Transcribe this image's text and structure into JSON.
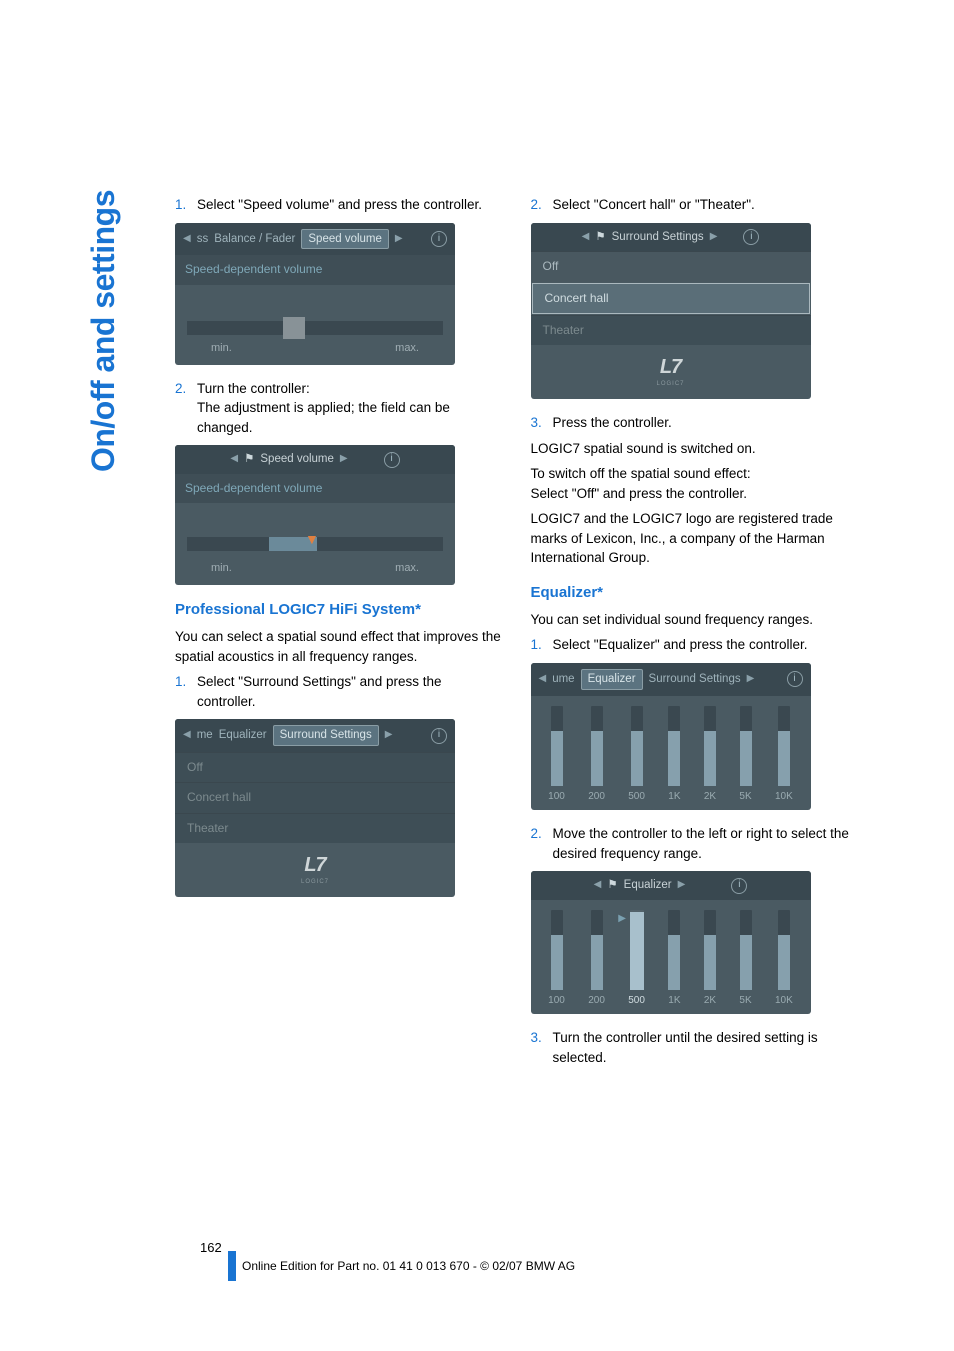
{
  "sideTab": "On/off and settings",
  "left": {
    "step1": {
      "num": "1.",
      "text": "Select \"Speed volume\" and press the controller."
    },
    "ss1": {
      "nav_prev": "ss",
      "nav_inactive": "Balance / Fader",
      "nav_active": "Speed volume",
      "subtitle": "Speed-dependent volume",
      "min": "min.",
      "max": "max."
    },
    "step2": {
      "num": "2.",
      "text_a": "Turn the controller:",
      "text_b": "The adjustment is applied; the field can be changed."
    },
    "ss2": {
      "title": "Speed volume",
      "subtitle": "Speed-dependent volume",
      "min": "min.",
      "max": "max."
    },
    "h_logic7": "Professional LOGIC7 HiFi System*",
    "p_logic7": "You can select a spatial sound effect that improves the spatial acoustics in all frequency ranges.",
    "step_l1": {
      "num": "1.",
      "text": "Select \"Surround Settings\" and press the controller."
    },
    "ss3": {
      "nav_prev": "me",
      "nav_inactive": "Equalizer",
      "nav_active": "Surround Settings",
      "items": [
        "Off",
        "Concert hall",
        "Theater"
      ]
    }
  },
  "right": {
    "step2": {
      "num": "2.",
      "text": "Select \"Concert hall\" or \"Theater\"."
    },
    "ss4": {
      "title": "Surround Settings",
      "items": {
        "off": "Off",
        "concert": "Concert hall",
        "theater": "Theater"
      }
    },
    "step3": {
      "num": "3.",
      "text": "Press the controller."
    },
    "p1": "LOGIC7 spatial sound is switched on.",
    "p2a": "To switch off the spatial sound effect:",
    "p2b": "Select \"Off\" and press the controller.",
    "p3": "LOGIC7 and the LOGIC7 logo are registered trade marks of Lexicon, Inc., a company of the Harman International Group.",
    "h_eq": "Equalizer*",
    "p_eq": "You can set individual sound frequency ranges.",
    "step_e1": {
      "num": "1.",
      "text": "Select \"Equalizer\" and press the controller."
    },
    "ss5": {
      "nav_prev": "ume",
      "nav_active": "Equalizer",
      "nav_inactive": "Surround Settings",
      "bands": [
        "100",
        "200",
        "500",
        "1K",
        "2K",
        "5K",
        "10K"
      ],
      "heights": [
        55,
        55,
        55,
        55,
        55,
        55,
        55
      ]
    },
    "step_e2": {
      "num": "2.",
      "text": "Move the controller to the left or right to select the desired frequency range."
    },
    "ss6": {
      "title": "Equalizer",
      "bands": [
        "100",
        "200",
        "500",
        "1K",
        "2K",
        "5K",
        "10K"
      ],
      "heights": [
        55,
        55,
        78,
        55,
        55,
        55,
        55
      ],
      "selected": 2
    },
    "step_e3": {
      "num": "3.",
      "text": "Turn the controller until the desired setting is selected."
    }
  },
  "logo": {
    "text": "L7",
    "sub": "LOGIC7"
  },
  "pageNum": "162",
  "footer": "Online Edition for Part no. 01 41 0 013 670 - © 02/07 BMW AG",
  "colors": {
    "accent": "#1974d2",
    "ss_bg": "#4a5a62",
    "ss_header": "#394850"
  }
}
